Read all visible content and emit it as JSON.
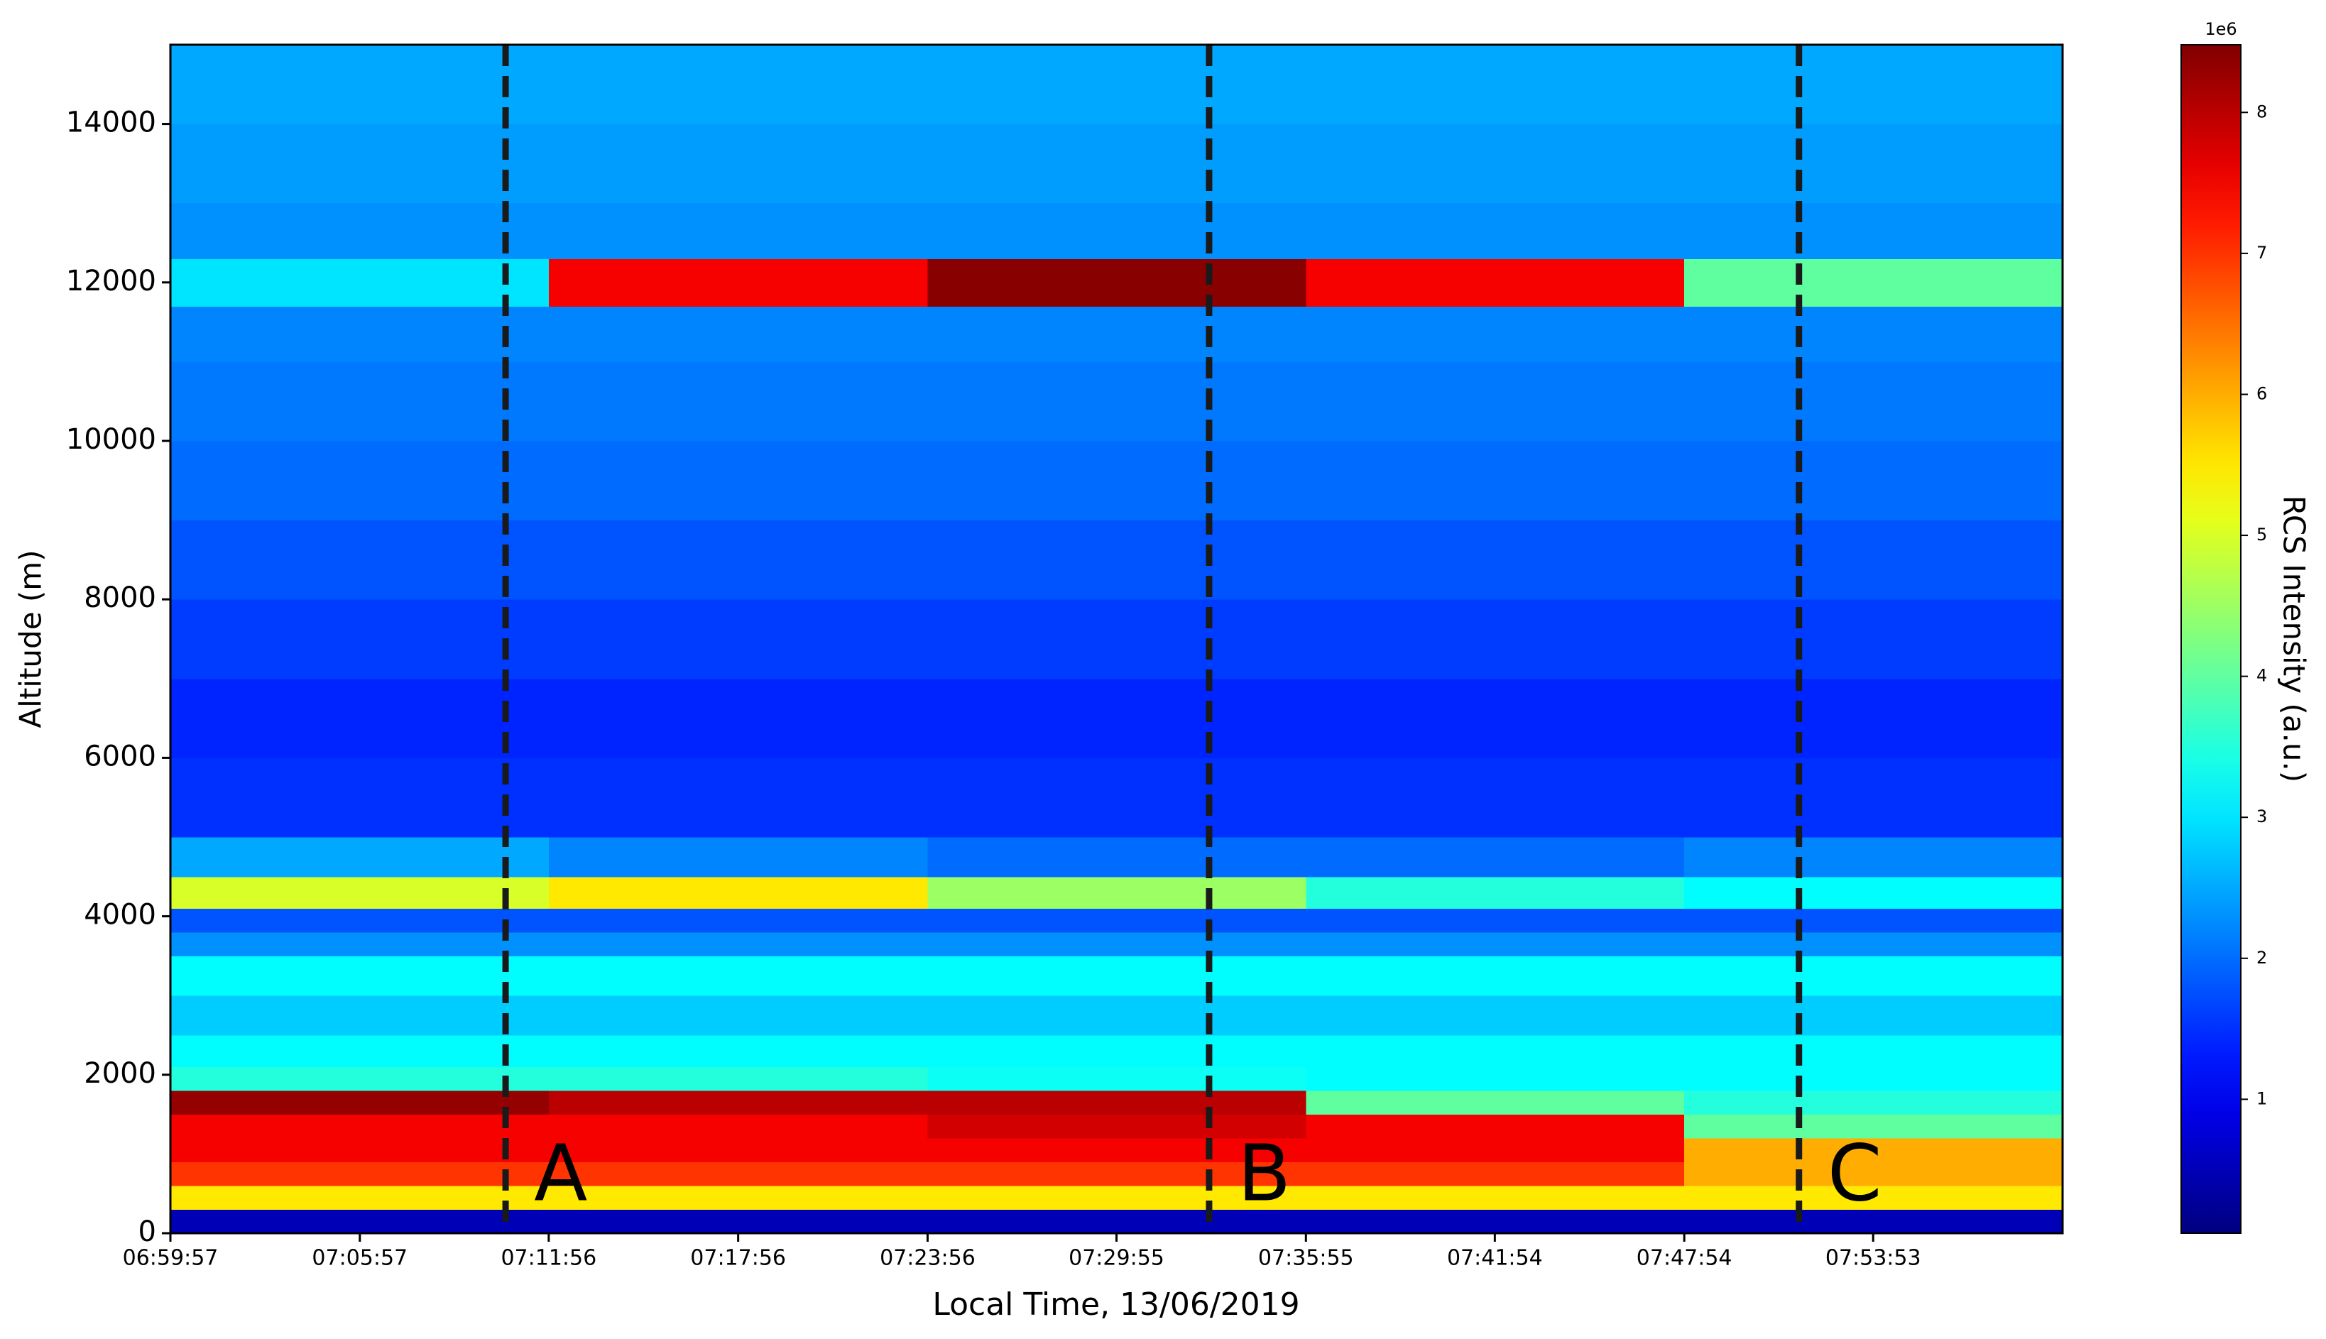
{
  "chart_data": {
    "type": "heatmap",
    "xlabel": "Local Time, 13/06/2019",
    "ylabel": "Altitude (m)",
    "xlim": [
      "06:59:57",
      "07:59:53"
    ],
    "xticks": [
      "06:59:57",
      "07:05:57",
      "07:11:56",
      "07:17:56",
      "07:23:56",
      "07:29:55",
      "07:35:55",
      "07:41:54",
      "07:47:54",
      "07:53:53"
    ],
    "ylim": [
      0,
      15000
    ],
    "yticks": [
      0,
      2000,
      4000,
      6000,
      8000,
      10000,
      12000,
      14000
    ],
    "x_edges": [
      "06:59:57",
      "07:11:56",
      "07:23:56",
      "07:35:55",
      "07:47:54",
      "07:59:53"
    ],
    "y_edges": [
      0,
      300,
      600,
      900,
      1200,
      1500,
      1800,
      2100,
      2500,
      3000,
      3500,
      3800,
      4100,
      4500,
      5000,
      6000,
      7000,
      8000,
      9000,
      10000,
      11000,
      11700,
      12300,
      13000,
      14000,
      15000
    ],
    "z": [
      [
        0.5,
        0.5,
        0.5,
        0.5,
        0.5
      ],
      [
        5.5,
        5.5,
        5.5,
        5.5,
        5.5
      ],
      [
        7,
        7,
        7,
        7,
        6
      ],
      [
        7.5,
        7.5,
        7.5,
        7.5,
        6
      ],
      [
        7.5,
        7.5,
        7.8,
        7.5,
        4
      ],
      [
        8.3,
        8,
        8,
        4,
        3.5
      ],
      [
        3.5,
        3.5,
        3.3,
        3.2,
        3.2
      ],
      [
        3.2,
        3.2,
        3.2,
        3.2,
        3.2
      ],
      [
        2.8,
        2.8,
        2.8,
        2.8,
        2.8
      ],
      [
        3.2,
        3.2,
        3.2,
        3.2,
        3.2
      ],
      [
        2.3,
        2.3,
        2.3,
        2.3,
        2.3
      ],
      [
        1.8,
        1.8,
        1.8,
        1.8,
        1.8
      ],
      [
        5,
        5.5,
        4.5,
        3.5,
        3.2
      ],
      [
        2.5,
        2.2,
        2,
        2,
        2.2
      ],
      [
        1.5,
        1.5,
        1.5,
        1.5,
        1.5
      ],
      [
        1.4,
        1.4,
        1.4,
        1.4,
        1.4
      ],
      [
        1.6,
        1.6,
        1.6,
        1.6,
        1.6
      ],
      [
        1.8,
        1.8,
        1.8,
        1.8,
        1.8
      ],
      [
        2,
        2,
        2,
        2,
        2
      ],
      [
        2.1,
        2.1,
        2.1,
        2.1,
        2.1
      ],
      [
        2.2,
        2.2,
        2.2,
        2.2,
        2.2
      ],
      [
        3,
        7.5,
        8.4,
        7.5,
        4
      ],
      [
        2.3,
        2.3,
        2.3,
        2.3,
        2.3
      ],
      [
        2.4,
        2.4,
        2.4,
        2.4,
        2.4
      ],
      [
        2.5,
        2.5,
        2.5,
        2.5,
        2.5
      ]
    ],
    "colormap": "jet",
    "colorbar": {
      "label": "RCS Intensity (a.u.)",
      "offset_label": "1e6",
      "lim": [
        0.05,
        8.48
      ],
      "ticks": [
        1,
        2,
        3,
        4,
        5,
        6,
        7,
        8
      ]
    },
    "markers": [
      {
        "label": "A",
        "x": "07:10:34",
        "color": "#1a1a1a"
      },
      {
        "label": "B",
        "x": "07:32:51",
        "color": "#1a1a1a"
      },
      {
        "label": "C",
        "x": "07:51:32",
        "color": "#1a1a1a"
      }
    ]
  }
}
